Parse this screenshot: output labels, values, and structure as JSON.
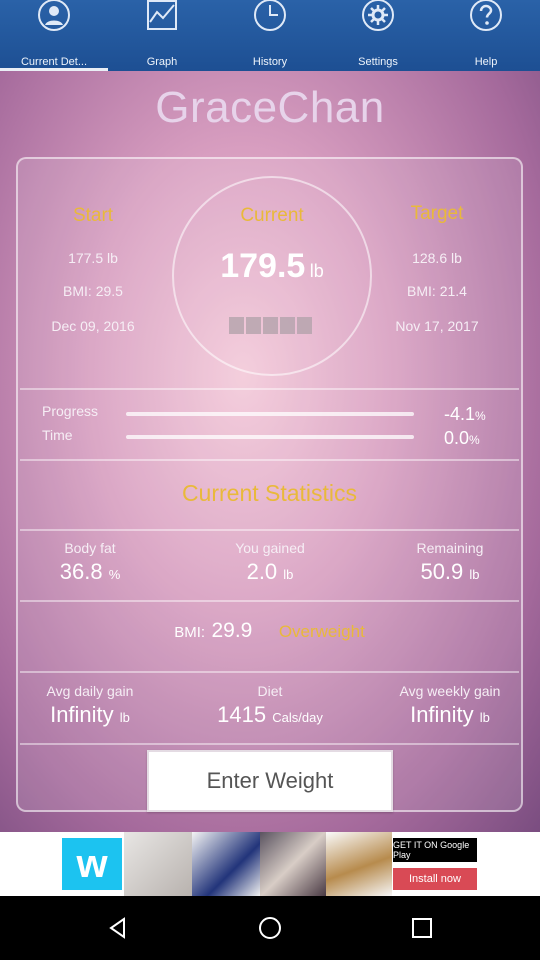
{
  "tabs": [
    {
      "label": "Current Det...",
      "icon": "person-icon",
      "active": true
    },
    {
      "label": "Graph",
      "icon": "graph-icon",
      "active": false
    },
    {
      "label": "History",
      "icon": "clock-icon",
      "active": false
    },
    {
      "label": "Settings",
      "icon": "gear-icon",
      "active": false
    },
    {
      "label": "Help",
      "icon": "help-icon",
      "active": false
    }
  ],
  "user": {
    "name": "GraceChan"
  },
  "summary": {
    "start": {
      "title": "Start",
      "weight": "177.5 lb",
      "bmi": "BMI: 29.5",
      "date": "Dec 09, 2016"
    },
    "current": {
      "title": "Current",
      "weight": "179.5",
      "unit": "lb"
    },
    "target": {
      "title": "Target",
      "weight": "128.6 lb",
      "bmi": "BMI: 21.4",
      "date": "Nov 17, 2017"
    }
  },
  "progress": {
    "progress_label": "Progress",
    "progress_value": "-4.1",
    "progress_unit": "%",
    "time_label": "Time",
    "time_value": "0.0",
    "time_unit": "%"
  },
  "stats": {
    "title": "Current Statistics",
    "body_fat": {
      "label": "Body fat",
      "value": "36.8",
      "unit": "%"
    },
    "gained": {
      "label": "You gained",
      "value": "2.0",
      "unit": "lb"
    },
    "remaining": {
      "label": "Remaining",
      "value": "50.9",
      "unit": "lb"
    },
    "bmi": {
      "label": "BMI:",
      "value": "29.9",
      "category": "Overweight"
    },
    "avg_daily": {
      "label": "Avg daily gain",
      "value": "Infinity",
      "unit": "lb"
    },
    "diet": {
      "label": "Diet",
      "value": "1415",
      "unit": "Cals/day"
    },
    "avg_weekly": {
      "label": "Avg weekly gain",
      "value": "Infinity",
      "unit": "lb"
    }
  },
  "actions": {
    "enter_weight": "Enter Weight"
  },
  "ad": {
    "logo": "w",
    "store": "GET IT ON Google Play",
    "install": "Install now"
  },
  "colors": {
    "accent": "#e9b93a",
    "tabbar": "#1d4f93",
    "ad_logo": "#1cc3f0"
  }
}
